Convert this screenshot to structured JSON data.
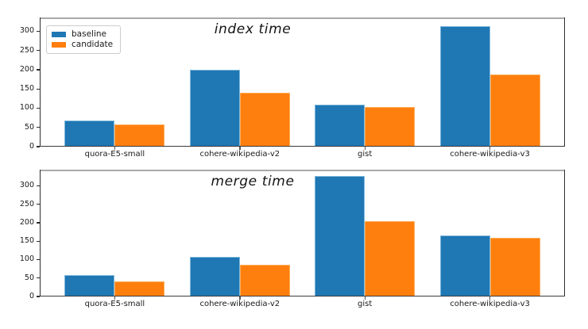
{
  "figure": {
    "background": "#ffffff"
  },
  "colors": {
    "baseline": "#1f77b4",
    "candidate": "#ff7f0e",
    "baseline_edge": "#7fb8dc",
    "candidate_edge": "#ffab57"
  },
  "chart_data": [
    {
      "type": "bar",
      "title": "index time",
      "categories": [
        "quora-E5-small",
        "cohere-wikipedia-v2",
        "gist",
        "cohere-wikipedia-v3"
      ],
      "series": [
        {
          "name": "baseline",
          "color": "#1f77b4",
          "edge_color": "#7fb8dc",
          "values": [
            69,
            201,
            110,
            314
          ]
        },
        {
          "name": "candidate",
          "color": "#ff7f0e",
          "edge_color": "#ffab57",
          "values": [
            58,
            141,
            104,
            188
          ]
        }
      ],
      "xlabel": "",
      "ylabel": "",
      "yticks": [
        0,
        50,
        100,
        150,
        200,
        250,
        300
      ],
      "ylim": [
        0,
        336
      ],
      "xlim": [
        -0.6,
        3.6
      ],
      "bar_width": 0.4,
      "grid": "off",
      "legend_position": "upper-left",
      "legend": true
    },
    {
      "type": "bar",
      "title": "merge time",
      "categories": [
        "quora-E5-small",
        "cohere-wikipedia-v2",
        "gist",
        "cohere-wikipedia-v3"
      ],
      "series": [
        {
          "name": "baseline",
          "color": "#1f77b4",
          "edge_color": "#7fb8dc",
          "values": [
            59,
            108,
            326,
            166
          ]
        },
        {
          "name": "candidate",
          "color": "#ff7f0e",
          "edge_color": "#ffab57",
          "values": [
            40,
            87,
            204,
            160
          ]
        }
      ],
      "xlabel": "",
      "ylabel": "",
      "yticks": [
        0,
        50,
        100,
        150,
        200,
        250,
        300
      ],
      "ylim": [
        0,
        344
      ],
      "xlim": [
        -0.6,
        3.6
      ],
      "bar_width": 0.4,
      "grid": "off",
      "legend": false
    }
  ]
}
